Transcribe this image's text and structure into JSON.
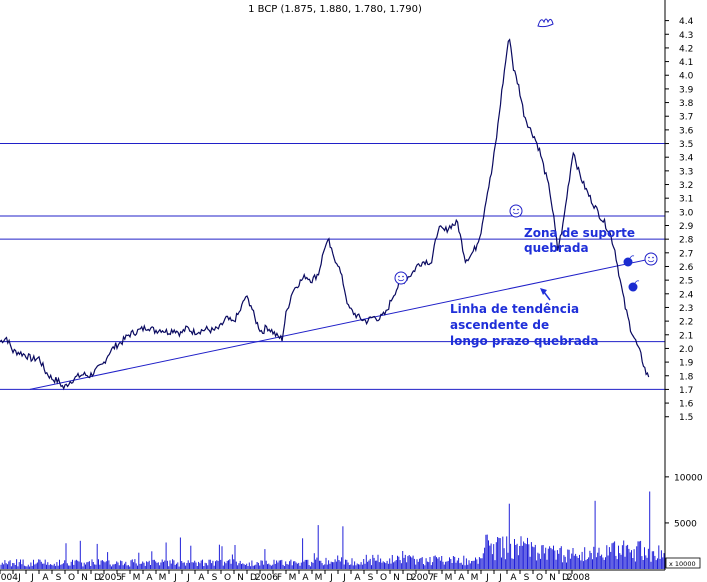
{
  "chart_data": {
    "type": "line",
    "title": "1 BCP (1.875, 1.880, 1.780, 1.790)",
    "price_axis": {
      "ylim": [
        1.5,
        4.5
      ],
      "ticks": [
        "4.4",
        "4.3",
        "4.2",
        "4.1",
        "4.0",
        "3.9",
        "3.8",
        "3.7",
        "3.6",
        "3.5",
        "3.4",
        "3.3",
        "3.2",
        "3.1",
        "3.0",
        "2.9",
        "2.8",
        "2.7",
        "2.6",
        "2.5",
        "2.4",
        "2.3",
        "2.2",
        "2.1",
        "2.0",
        "1.9",
        "1.8",
        "1.7",
        "1.6",
        "1.5"
      ]
    },
    "volume_axis": {
      "ticks": [
        {
          "label": "10000",
          "value": 10000
        },
        {
          "label": "5000",
          "value": 5000
        }
      ],
      "unit_label": "x 10000",
      "ymax": 14000
    },
    "x_axis": {
      "labels": [
        "2004",
        "J",
        "J",
        "A",
        "S",
        "O",
        "N",
        "D",
        "2005",
        "F",
        "M",
        "A",
        "M",
        "J",
        "J",
        "A",
        "S",
        "O",
        "N",
        "D",
        "2006",
        "F",
        "M",
        "A",
        "M",
        "J",
        "J",
        "A",
        "S",
        "O",
        "N",
        "D",
        "2007",
        "F",
        "M",
        "A",
        "M",
        "J",
        "J",
        "A",
        "S",
        "O",
        "N",
        "D",
        "2008"
      ]
    },
    "horizontal_levels": [
      3.5,
      2.97,
      2.8,
      2.05,
      1.7
    ],
    "trendline": {
      "start": {
        "month": 2.3,
        "price": 1.7
      },
      "end": {
        "month": 49.8,
        "price": 2.65
      }
    },
    "series": [
      {
        "values": [
          {
            "month": 0.0,
            "price": 2.05
          },
          {
            "month": 0.5,
            "price": 2.08
          },
          {
            "month": 1.0,
            "price": 1.98
          },
          {
            "month": 1.5,
            "price": 1.97
          },
          {
            "month": 2.0,
            "price": 1.95
          },
          {
            "month": 2.5,
            "price": 1.92
          },
          {
            "month": 3.0,
            "price": 1.93
          },
          {
            "month": 3.5,
            "price": 1.83
          },
          {
            "month": 4.0,
            "price": 1.78
          },
          {
            "month": 4.5,
            "price": 1.76
          },
          {
            "month": 4.9,
            "price": 1.71
          },
          {
            "month": 5.4,
            "price": 1.76
          },
          {
            "month": 5.9,
            "price": 1.79
          },
          {
            "month": 6.4,
            "price": 1.81
          },
          {
            "month": 6.9,
            "price": 1.8
          },
          {
            "month": 7.4,
            "price": 1.84
          },
          {
            "month": 7.9,
            "price": 1.88
          },
          {
            "month": 8.4,
            "price": 1.97
          },
          {
            "month": 8.9,
            "price": 2.02
          },
          {
            "month": 9.4,
            "price": 2.05
          },
          {
            "month": 9.9,
            "price": 2.1
          },
          {
            "month": 10.4,
            "price": 2.12
          },
          {
            "month": 10.9,
            "price": 2.14
          },
          {
            "month": 11.4,
            "price": 2.16
          },
          {
            "month": 11.9,
            "price": 2.13
          },
          {
            "month": 12.4,
            "price": 2.14
          },
          {
            "month": 12.9,
            "price": 2.12
          },
          {
            "month": 13.4,
            "price": 2.14
          },
          {
            "month": 13.9,
            "price": 2.11
          },
          {
            "month": 14.4,
            "price": 2.15
          },
          {
            "month": 14.9,
            "price": 2.12
          },
          {
            "month": 15.4,
            "price": 2.13
          },
          {
            "month": 15.9,
            "price": 2.14
          },
          {
            "month": 16.4,
            "price": 2.13
          },
          {
            "month": 16.9,
            "price": 2.15
          },
          {
            "month": 17.4,
            "price": 2.22
          },
          {
            "month": 17.9,
            "price": 2.19
          },
          {
            "month": 18.4,
            "price": 2.26
          },
          {
            "month": 18.9,
            "price": 2.38
          },
          {
            "month": 19.3,
            "price": 2.32
          },
          {
            "month": 19.6,
            "price": 2.22
          },
          {
            "month": 20.0,
            "price": 2.14
          },
          {
            "month": 20.2,
            "price": 2.12
          },
          {
            "month": 20.5,
            "price": 2.16
          },
          {
            "month": 20.9,
            "price": 2.13
          },
          {
            "month": 21.3,
            "price": 2.09
          },
          {
            "month": 21.7,
            "price": 2.07
          },
          {
            "month": 22.0,
            "price": 2.25
          },
          {
            "month": 22.5,
            "price": 2.42
          },
          {
            "month": 23.0,
            "price": 2.48
          },
          {
            "month": 23.5,
            "price": 2.53
          },
          {
            "month": 24.0,
            "price": 2.5
          },
          {
            "month": 24.5,
            "price": 2.55
          },
          {
            "month": 25.0,
            "price": 2.75
          },
          {
            "month": 25.3,
            "price": 2.78
          },
          {
            "month": 25.6,
            "price": 2.68
          },
          {
            "month": 26.0,
            "price": 2.62
          },
          {
            "month": 26.4,
            "price": 2.48
          },
          {
            "month": 26.8,
            "price": 2.3
          },
          {
            "month": 27.2,
            "price": 2.26
          },
          {
            "month": 27.7,
            "price": 2.22
          },
          {
            "month": 28.2,
            "price": 2.2
          },
          {
            "month": 28.7,
            "price": 2.23
          },
          {
            "month": 29.2,
            "price": 2.22
          },
          {
            "month": 29.7,
            "price": 2.26
          },
          {
            "month": 30.2,
            "price": 2.38
          },
          {
            "month": 30.7,
            "price": 2.47
          },
          {
            "month": 31.2,
            "price": 2.51
          },
          {
            "month": 31.7,
            "price": 2.55
          },
          {
            "month": 32.2,
            "price": 2.62
          },
          {
            "month": 32.7,
            "price": 2.64
          },
          {
            "month": 33.2,
            "price": 2.63
          },
          {
            "month": 33.7,
            "price": 2.88
          },
          {
            "month": 34.2,
            "price": 2.86
          },
          {
            "month": 34.7,
            "price": 2.9
          },
          {
            "month": 35.2,
            "price": 2.92
          },
          {
            "month": 35.5,
            "price": 2.78
          },
          {
            "month": 35.8,
            "price": 2.65
          },
          {
            "month": 36.2,
            "price": 2.68
          },
          {
            "month": 36.6,
            "price": 2.74
          },
          {
            "month": 37.0,
            "price": 2.86
          },
          {
            "month": 37.4,
            "price": 3.1
          },
          {
            "month": 37.8,
            "price": 3.28
          },
          {
            "month": 38.2,
            "price": 3.55
          },
          {
            "month": 38.6,
            "price": 3.88
          },
          {
            "month": 39.0,
            "price": 4.18
          },
          {
            "month": 39.2,
            "price": 4.28
          },
          {
            "month": 39.5,
            "price": 4.05
          },
          {
            "month": 39.9,
            "price": 3.92
          },
          {
            "month": 40.3,
            "price": 3.72
          },
          {
            "month": 40.7,
            "price": 3.62
          },
          {
            "month": 41.1,
            "price": 3.55
          },
          {
            "month": 41.5,
            "price": 3.45
          },
          {
            "month": 41.9,
            "price": 3.3
          },
          {
            "month": 42.3,
            "price": 3.15
          },
          {
            "month": 42.6,
            "price": 2.95
          },
          {
            "month": 42.9,
            "price": 2.72
          },
          {
            "month": 43.3,
            "price": 2.9
          },
          {
            "month": 43.7,
            "price": 3.18
          },
          {
            "month": 44.1,
            "price": 3.45
          },
          {
            "month": 44.5,
            "price": 3.3
          },
          {
            "month": 44.9,
            "price": 3.2
          },
          {
            "month": 45.3,
            "price": 3.12
          },
          {
            "month": 45.7,
            "price": 3.05
          },
          {
            "month": 46.1,
            "price": 2.98
          },
          {
            "month": 46.5,
            "price": 2.92
          },
          {
            "month": 46.9,
            "price": 2.85
          },
          {
            "month": 47.3,
            "price": 2.72
          },
          {
            "month": 47.7,
            "price": 2.5
          },
          {
            "month": 48.1,
            "price": 2.3
          },
          {
            "month": 48.5,
            "price": 2.15
          },
          {
            "month": 48.9,
            "price": 2.05
          },
          {
            "month": 49.3,
            "price": 1.95
          },
          {
            "month": 49.7,
            "price": 1.82
          },
          {
            "month": 49.9,
            "price": 1.79
          }
        ]
      }
    ],
    "annotations": [
      {
        "lines": [
          "Zona de suporte",
          "quebrada"
        ],
        "color": "#1f2fd9"
      },
      {
        "lines": [
          "Linha de tendência",
          "ascendente de",
          "longo prazo quebrada"
        ],
        "color": "#1f2fd9"
      }
    ],
    "colors": {
      "price": "#0a0a60",
      "lines": "#2020c8",
      "text": "#1f2fd9",
      "volume": "#2020d8"
    }
  }
}
